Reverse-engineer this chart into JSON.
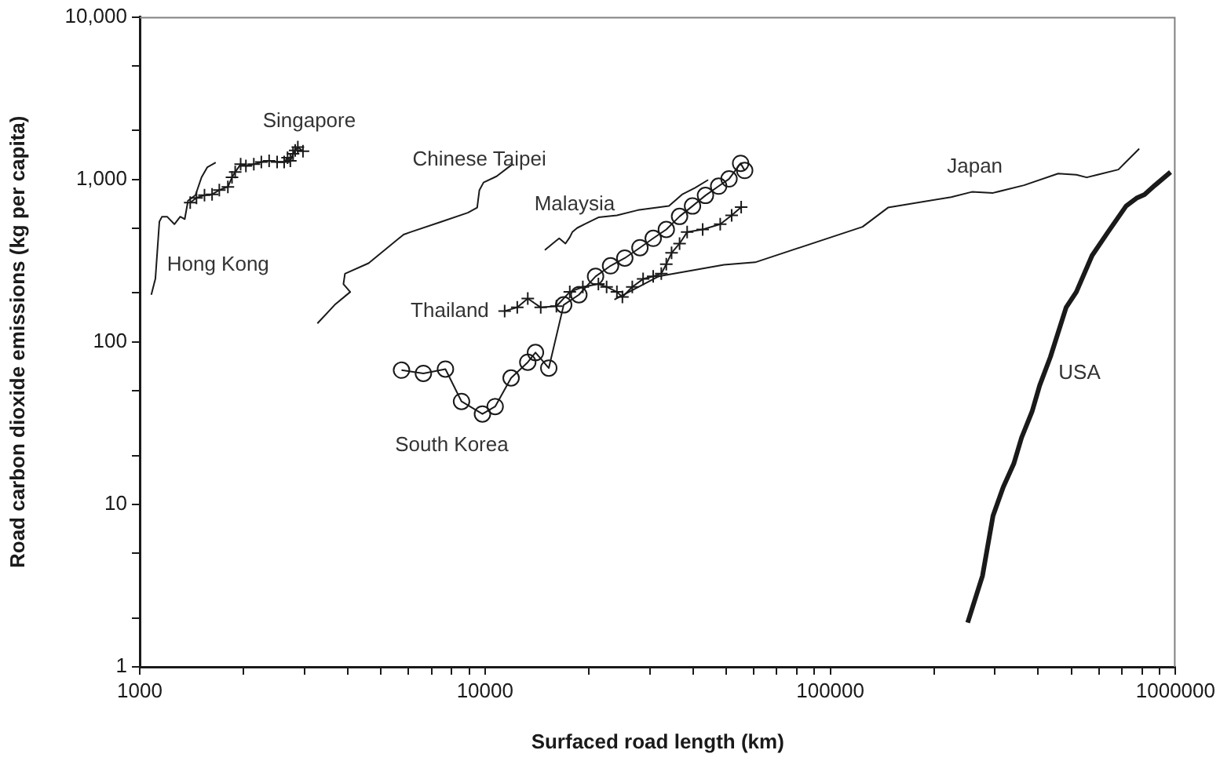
{
  "chart_data": {
    "type": "line",
    "xlabel": "Surfaced road length (km)",
    "ylabel": "Road carbon dioxide emissions (kg per capita)",
    "log": "xy",
    "xlim": [
      1000,
      1000000
    ],
    "xticks": [
      1000,
      {
        "value": 2000,
        "label": null
      },
      {
        "value": 3000,
        "label": null
      },
      {
        "value": 4000,
        "label": null
      },
      {
        "value": 5000,
        "label": null
      },
      {
        "value": 6000,
        "label": null
      },
      {
        "value": 7000,
        "label": null
      },
      {
        "value": 8000,
        "label": null
      },
      {
        "value": 9000,
        "label": null
      },
      10000,
      {
        "value": 20000,
        "label": null
      },
      {
        "value": 30000,
        "label": null
      },
      {
        "value": 40000,
        "label": null
      },
      {
        "value": 50000,
        "label": null
      },
      {
        "value": 60000,
        "label": null
      },
      {
        "value": 70000,
        "label": null
      },
      {
        "value": 80000,
        "label": null
      },
      {
        "value": 90000,
        "label": null
      },
      100000,
      {
        "value": 200000,
        "label": null
      },
      {
        "value": 300000,
        "label": null
      },
      {
        "value": 400000,
        "label": null
      },
      {
        "value": 500000,
        "label": null
      },
      {
        "value": 600000,
        "label": null
      },
      {
        "value": 700000,
        "label": null
      },
      {
        "value": 800000,
        "label": null
      },
      {
        "value": 900000,
        "label": null
      },
      1000000
    ],
    "ylim": [
      1,
      10000
    ],
    "yticks": [
      1,
      {
        "value": 2,
        "label": null
      },
      {
        "value": 5,
        "label": null
      },
      10,
      {
        "value": 20,
        "label": null
      },
      {
        "value": 50,
        "label": null
      },
      100,
      {
        "value": 200,
        "label": null
      },
      {
        "value": 500,
        "label": null
      },
      {
        "value": 1000,
        "label": "1,000"
      },
      {
        "value": 2000,
        "label": null
      },
      {
        "value": 5000,
        "label": null
      },
      {
        "value": 10000,
        "label": "10,000"
      }
    ],
    "series": [
      {
        "name": "Hong Kong",
        "color": "#1a1a1a",
        "marker": "none",
        "x": [
          1080,
          1110,
          1140,
          1160,
          1200,
          1260,
          1310,
          1350,
          1380,
          1450,
          1510,
          1570,
          1660
        ],
        "values": [
          195,
          245,
          550,
          590,
          590,
          530,
          590,
          570,
          740,
          800,
          1030,
          1190,
          1270
        ]
      },
      {
        "name": "Singapore",
        "color": "#1a1a1a",
        "marker": "cross",
        "x": [
          1400,
          1460,
          1540,
          1620,
          1700,
          1800,
          1850,
          1890,
          1960,
          2030,
          2140,
          2250,
          2370,
          2500,
          2620,
          2680,
          2730,
          2780,
          2820,
          2870,
          2970
        ],
        "values": [
          720,
          770,
          800,
          810,
          860,
          900,
          1030,
          1110,
          1240,
          1210,
          1240,
          1280,
          1300,
          1280,
          1280,
          1360,
          1300,
          1440,
          1510,
          1580,
          1490
        ]
      },
      {
        "name": "Chinese Taipei",
        "color": "#1a1a1a",
        "marker": "none",
        "x": [
          3270,
          3670,
          4070,
          3890,
          3930,
          4600,
          5810,
          6080,
          7490,
          8920,
          9490,
          9630,
          9900,
          10800,
          12000
        ],
        "values": [
          130,
          169,
          203,
          227,
          263,
          305,
          458,
          474,
          550,
          624,
          671,
          857,
          957,
          1045,
          1240
        ]
      },
      {
        "name": "Malaysia",
        "color": "#1a1a1a",
        "marker": "none",
        "x": [
          14900,
          15700,
          16400,
          17100,
          17600,
          17900,
          18500,
          19400,
          21300,
          24100,
          27700,
          34100,
          37200,
          40600,
          44300
        ],
        "values": [
          367,
          403,
          434,
          403,
          441,
          474,
          503,
          530,
          584,
          601,
          647,
          686,
          807,
          889,
          994
        ]
      },
      {
        "name": "South Korea",
        "color": "#1a1a1a",
        "marker": "circle",
        "x": [
          5730,
          6630,
          7680,
          8550,
          9830,
          10700,
          11900,
          13300,
          14000,
          15300,
          16900,
          18700,
          20900,
          23100,
          25400,
          28100,
          30700,
          33500,
          36600,
          39900,
          43500,
          47500,
          50900,
          55000,
          56500
        ],
        "values": [
          67,
          64,
          68,
          43,
          36,
          40,
          60,
          75,
          86,
          69,
          169,
          195,
          253,
          294,
          328,
          380,
          434,
          492,
          592,
          686,
          797,
          909,
          1007,
          1256,
          1135
        ]
      },
      {
        "name": "Thailand",
        "color": "#1a1a1a",
        "marker": "cross",
        "x": [
          11400,
          12400,
          13300,
          14500,
          16100,
          17600,
          19200,
          21300,
          22500,
          24100,
          25000,
          26700,
          28700,
          30700,
          32400,
          33500,
          34700,
          36600,
          38500,
          42700,
          48000,
          51800,
          55200
        ],
        "values": [
          155,
          163,
          185,
          163,
          166,
          203,
          218,
          227,
          218,
          203,
          189,
          218,
          244,
          253,
          263,
          301,
          353,
          403,
          474,
          492,
          530,
          601,
          676
        ]
      },
      {
        "name": "Japan",
        "color": "#1a1a1a",
        "marker": "none",
        "x": [
          23700,
          31800,
          49200,
          60600,
          124000,
          147000,
          224000,
          257000,
          296000,
          364000,
          457000,
          516000,
          553000,
          594000,
          683000,
          719000,
          785000
        ],
        "values": [
          182,
          253,
          298,
          309,
          511,
          671,
          779,
          838,
          826,
          921,
          1086,
          1069,
          1029,
          1069,
          1150,
          1284,
          1546
        ]
      },
      {
        "name": "USA",
        "color": "#1a1a1a",
        "marker": "none",
        "x": [
          250000,
          276000,
          296000,
          317000,
          340000,
          358000,
          384000,
          404000,
          434000,
          482000,
          516000,
          573000,
          637000,
          719000,
          771000,
          813000,
          872000,
          967000
        ],
        "values": [
          1.87,
          3.64,
          8.5,
          12.8,
          17.8,
          25.7,
          37.2,
          53.9,
          80.8,
          163,
          203,
          340,
          474,
          686,
          767,
          807,
          921,
          1109
        ]
      }
    ]
  }
}
